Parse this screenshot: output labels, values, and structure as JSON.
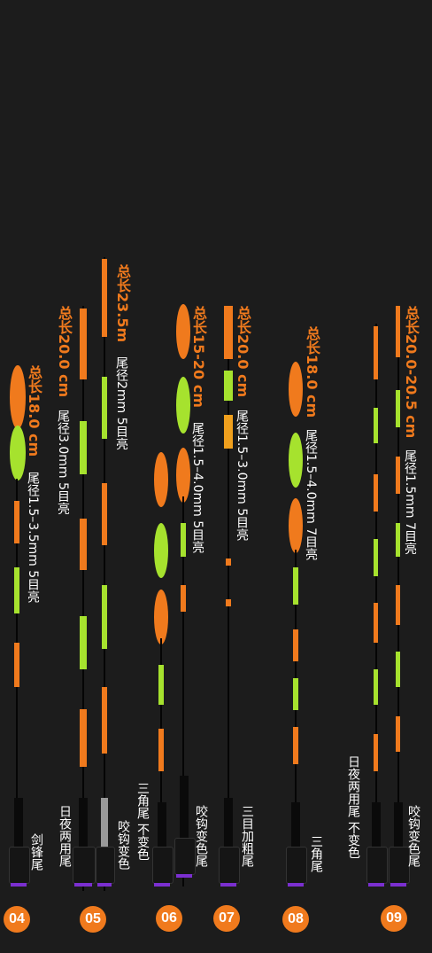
{
  "colors": {
    "orange": "#f07a1d",
    "green": "#a6e22e",
    "background": "#1c1c1c",
    "text": "#ffffff",
    "accent_ring": "#8a2be2"
  },
  "floats": [
    {
      "id": "04",
      "length": "总长18.0 cm",
      "spec": "尾径1.5–3.5mm  5目亮",
      "type": "剑锋尾"
    },
    {
      "id": "05",
      "length": "总长20.0 cm",
      "spec": "尾径3.0mm  5目亮",
      "type_a": "日夜两用尾",
      "length_b": "总长23.5m",
      "spec_b": "尾径2mm  5目亮",
      "type_b": "咬钩变色"
    },
    {
      "id": "06",
      "length": "总长15-20 cm",
      "spec": "尾径1.5–4.0mm  5目亮",
      "type_a": "三角尾 不变色",
      "type_b": "咬钩变色尾"
    },
    {
      "id": "07",
      "length": "总长20.0 cm",
      "spec": "尾径1.5–3.0mm  5目亮",
      "type": "三目加粗尾"
    },
    {
      "id": "08",
      "length": "总长18.0 cm",
      "spec": "尾径1.5–4.0mm  7目亮",
      "type": "三角尾"
    },
    {
      "id": "09",
      "length": "总长20.0-20.5 cm",
      "spec": "尾径1.5mm  7目亮",
      "type_a": "日夜两用尾 不变色",
      "type_b": "咬钩变色尾"
    }
  ]
}
